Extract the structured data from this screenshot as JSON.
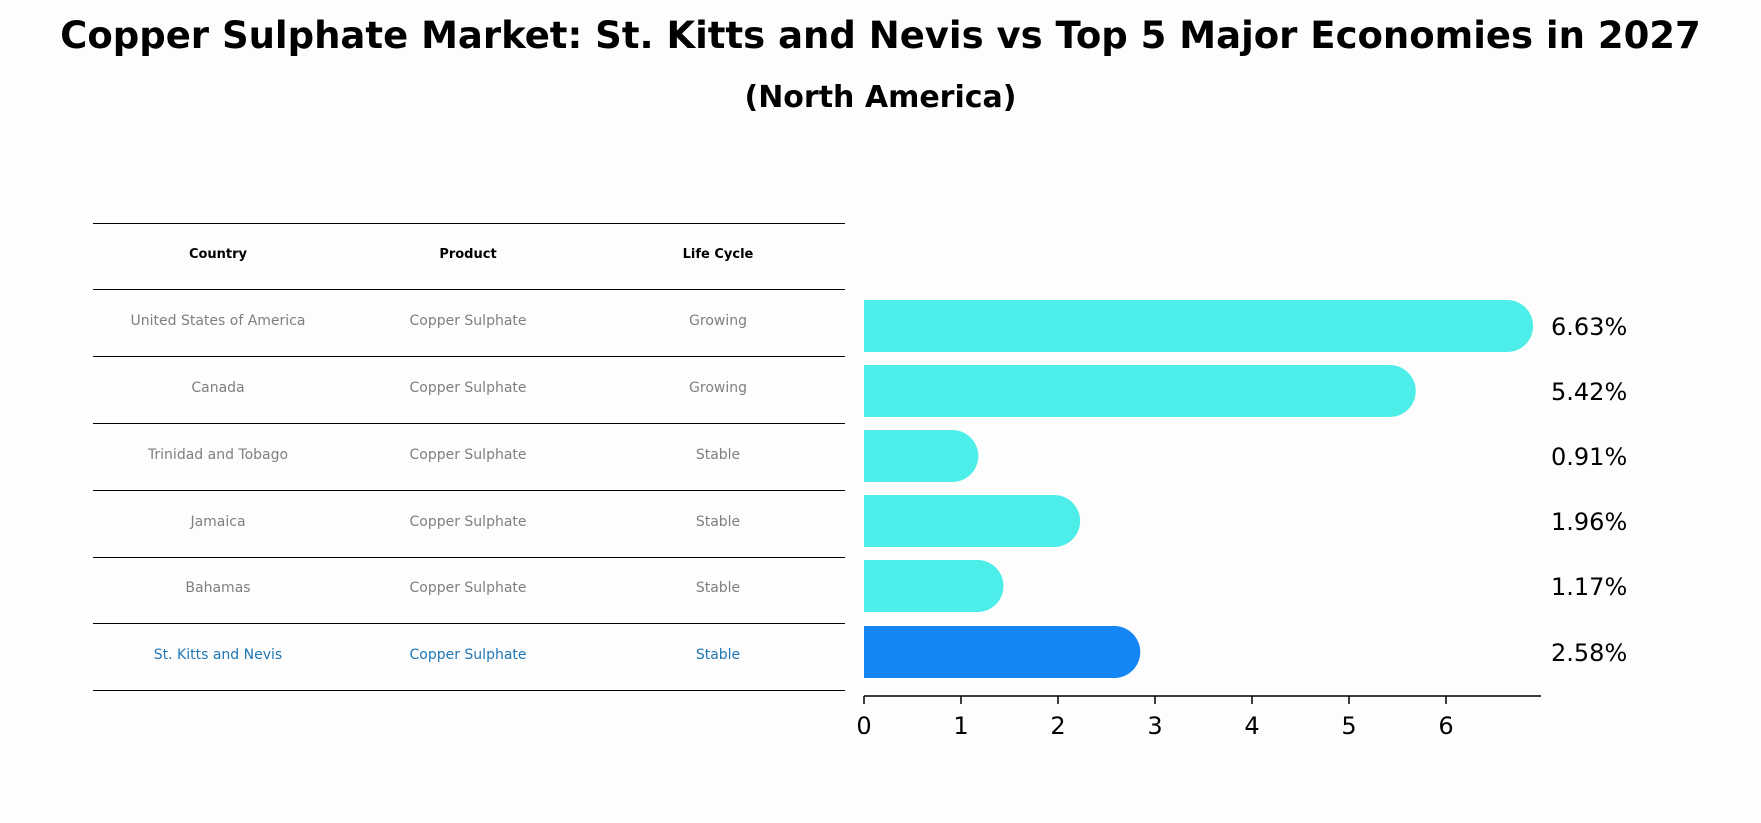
{
  "title": "Copper Sulphate Market: St. Kitts and Nevis vs Top 5 Major Economies in 2027",
  "subtitle": "(North America)",
  "table": {
    "headers": [
      "Country",
      "Product",
      "Life Cycle"
    ],
    "rows": [
      {
        "country": "United States of America",
        "product": "Copper Sulphate",
        "life_cycle": "Growing",
        "highlight": false
      },
      {
        "country": "Canada",
        "product": "Copper Sulphate",
        "life_cycle": "Growing",
        "highlight": false
      },
      {
        "country": "Trinidad and Tobago",
        "product": "Copper Sulphate",
        "life_cycle": "Stable",
        "highlight": false
      },
      {
        "country": "Jamaica",
        "product": "Copper Sulphate",
        "life_cycle": "Stable",
        "highlight": false
      },
      {
        "country": "Bahamas",
        "product": "Copper Sulphate",
        "life_cycle": "Stable",
        "highlight": false
      },
      {
        "country": "St. Kitts and Nevis",
        "product": "Copper Sulphate",
        "life_cycle": "Stable",
        "highlight": true
      }
    ]
  },
  "chart_data": {
    "type": "bar",
    "orientation": "horizontal",
    "categories": [
      "United States of America",
      "Canada",
      "Trinidad and Tobago",
      "Jamaica",
      "Bahamas",
      "St. Kitts and Nevis"
    ],
    "values": [
      6.63,
      5.42,
      0.91,
      1.96,
      1.17,
      2.58
    ],
    "value_labels": [
      "6.63%",
      "5.42%",
      "0.91%",
      "1.96%",
      "1.17%",
      "2.58%"
    ],
    "xticks": [
      0,
      1,
      2,
      3,
      4,
      5,
      6
    ],
    "xlim": [
      0,
      7
    ],
    "colors": {
      "default": "#4deee9",
      "highlight": "#1586f5"
    },
    "highlight_index": 5
  },
  "colors": {
    "highlight_text": "#1f77b4",
    "muted_text": "#7f7f7f"
  }
}
